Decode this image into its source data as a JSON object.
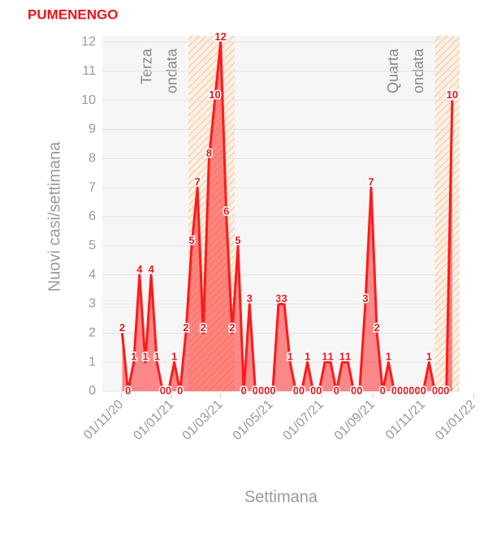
{
  "chart_data": {
    "type": "line",
    "title": "PUMENENGO",
    "y_label": "Nuovi casi/settimana",
    "x_label": "Settimana",
    "xlim": [
      "09/10/20",
      "15/12/21"
    ],
    "ylim": [
      0,
      12
    ],
    "yticks": [
      0,
      1,
      2,
      3,
      4,
      5,
      6,
      7,
      8,
      9,
      10,
      11,
      12
    ],
    "xticks": [
      "01/11/20",
      "01/01/21",
      "01/03/21",
      "01/05/21",
      "01/07/21",
      "01/09/21",
      "01/11/21",
      "01/01/22"
    ],
    "grid": true,
    "waves": [
      {
        "label_lines": [
          "Terza",
          "ondata"
        ],
        "start": "21/01/21",
        "end": "18/03/21"
      },
      {
        "label_lines": [
          "Quarta",
          "ondata"
        ],
        "start": "15/11/21",
        "end": "15/12/21"
      }
    ],
    "x": [
      "02/11/20",
      "09/11/20",
      "16/11/20",
      "23/11/20",
      "30/11/20",
      "07/12/20",
      "14/12/20",
      "21/12/20",
      "28/12/20",
      "04/01/21",
      "11/01/21",
      "18/01/21",
      "25/01/21",
      "01/02/21",
      "08/02/21",
      "15/02/21",
      "22/02/21",
      "01/03/21",
      "08/03/21",
      "15/03/21",
      "22/03/21",
      "29/03/21",
      "05/04/21",
      "12/04/21",
      "19/04/21",
      "26/04/21",
      "03/05/21",
      "10/05/21",
      "17/05/21",
      "24/05/21",
      "31/05/21",
      "07/06/21",
      "14/06/21",
      "21/06/21",
      "28/06/21",
      "05/07/21",
      "12/07/21",
      "19/07/21",
      "26/07/21",
      "02/08/21",
      "09/08/21",
      "16/08/21",
      "23/08/21",
      "30/08/21",
      "06/09/21",
      "13/09/21",
      "20/09/21",
      "27/09/21",
      "04/10/21",
      "11/10/21",
      "18/10/21",
      "25/10/21",
      "01/11/21",
      "08/11/21",
      "15/11/21",
      "22/11/21",
      "29/11/21",
      "06/12/21"
    ],
    "series": [
      {
        "name": "Nuovi casi",
        "color": "#ff1a1a",
        "values": [
          2,
          0,
          1,
          4,
          1,
          4,
          1,
          0,
          0,
          1,
          0,
          2,
          5,
          7,
          2,
          8,
          10,
          12,
          6,
          2,
          5,
          0,
          3,
          0,
          0,
          0,
          0,
          3,
          3,
          1,
          0,
          0,
          1,
          0,
          0,
          1,
          1,
          0,
          1,
          1,
          0,
          0,
          3,
          7,
          2,
          0,
          1,
          0,
          0,
          0,
          0,
          0,
          0,
          1,
          0,
          0,
          0,
          10
        ]
      }
    ]
  }
}
